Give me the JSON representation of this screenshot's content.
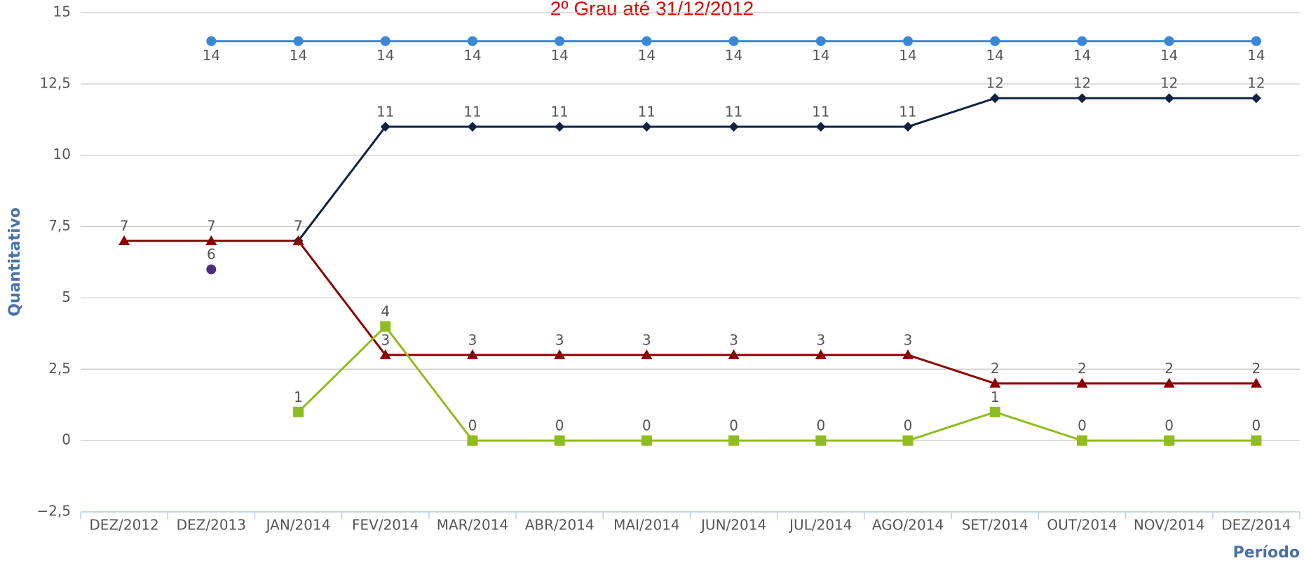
{
  "chart_data": {
    "type": "line",
    "title": "2º Grau até 31/12/2012",
    "y_label": "Quantitativo",
    "x_label": "Período",
    "categories": [
      "DEZ/2012",
      "DEZ/2013",
      "JAN/2014",
      "FEV/2014",
      "MAR/2014",
      "ABR/2014",
      "MAI/2014",
      "JUN/2014",
      "JUL/2014",
      "AGO/2014",
      "SET/2014",
      "OUT/2014",
      "NOV/2014",
      "DEZ/2014"
    ],
    "series": [
      {
        "color": "#3a87d9",
        "marker": "circle",
        "label_position": "below",
        "values": [
          null,
          14,
          14,
          14,
          14,
          14,
          14,
          14,
          14,
          14,
          14,
          14,
          14,
          14
        ]
      },
      {
        "color": "#0d2340",
        "marker": "diamond",
        "label_position": "above",
        "values": [
          null,
          null,
          7,
          11,
          11,
          11,
          11,
          11,
          11,
          11,
          12,
          12,
          12,
          12
        ]
      },
      {
        "color": "#8b0000",
        "marker": "triangle",
        "label_position": "above",
        "values": [
          7,
          7,
          7,
          3,
          3,
          3,
          3,
          3,
          3,
          3,
          2,
          2,
          2,
          2
        ]
      },
      {
        "color": "#8fbc1f",
        "marker": "square",
        "label_position": "above",
        "values": [
          null,
          null,
          1,
          4,
          0,
          0,
          0,
          0,
          0,
          0,
          1,
          0,
          0,
          0
        ]
      },
      {
        "color": "#4b2c7f",
        "marker": "circle",
        "label_position": "above",
        "values": [
          null,
          6,
          null,
          null,
          null,
          null,
          null,
          null,
          null,
          null,
          null,
          null,
          null,
          null
        ]
      }
    ],
    "ylim": [
      -2.5,
      15
    ],
    "yticks": [
      {
        "value": -2.5,
        "label": "−2,5"
      },
      0,
      {
        "value": 2.5,
        "label": "2,5"
      },
      5,
      {
        "value": 7.5,
        "label": "7,5"
      },
      10,
      {
        "value": 12.5,
        "label": "12,5"
      },
      15
    ],
    "grid": true
  }
}
